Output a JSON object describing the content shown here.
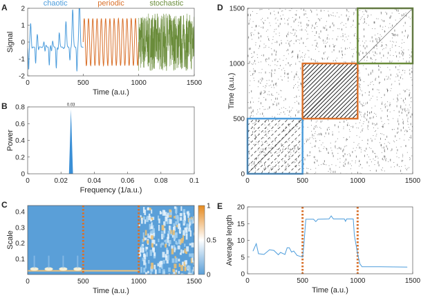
{
  "colors": {
    "chaotic": "#4b9cdc",
    "periodic": "#d9702a",
    "stochastic": "#6a8c3a",
    "heat_low": "#5a9fd8",
    "heat_mid": "#ffffff",
    "heat_high": "#e58a1f"
  },
  "chart_data": [
    {
      "panel": "A",
      "type": "line",
      "xlabel": "Time (a.u.)",
      "ylabel": "Signal",
      "xlim": [
        0,
        1500
      ],
      "ylim": [
        -2,
        2
      ],
      "xticks": [
        "0",
        "500",
        "1000",
        "1500"
      ],
      "yticks": [
        "-2",
        "-1",
        "0",
        "1",
        "2"
      ],
      "segments": [
        {
          "label": "chaotic",
          "range": [
            0,
            500
          ],
          "color_key": "chaotic"
        },
        {
          "label": "periodic",
          "range": [
            500,
            1000
          ],
          "amplitude": 1.4,
          "frequency": 0.026,
          "color_key": "periodic"
        },
        {
          "label": "stochastic",
          "range": [
            1000,
            1500
          ],
          "amplitude": 1.7,
          "color_key": "stochastic"
        }
      ]
    },
    {
      "panel": "B",
      "type": "area",
      "xlabel": "Frequency (1/a.u.)",
      "ylabel": "Power",
      "xlim": [
        0,
        0.1
      ],
      "ylim": [
        0,
        0.8
      ],
      "xticks": [
        "0",
        "0.02",
        "0.04",
        "0.06",
        "0.08",
        "0.1"
      ],
      "yticks": [
        "0",
        "0.2",
        "0.4",
        "0.6",
        "0.8"
      ],
      "peak": {
        "x": 0.026,
        "y": 0.77,
        "annotation": "0.03"
      }
    },
    {
      "panel": "C",
      "type": "heatmap",
      "xlabel": "Time (a.u.)",
      "ylabel": "Scale",
      "xlim": [
        0,
        1500
      ],
      "ylim": [
        0,
        0.44
      ],
      "xticks": [
        "0",
        "500",
        "1000",
        "1500"
      ],
      "yticks": [
        "0.1",
        "0.2",
        "0.3",
        "0.4"
      ],
      "colorbar_ticks": [
        "0",
        "0.5",
        "1"
      ],
      "markers": [
        500,
        1000
      ]
    },
    {
      "panel": "D",
      "type": "scatter",
      "xlabel": "",
      "ylabel": "Time (a.u.)",
      "xlim": [
        0,
        1500
      ],
      "ylim": [
        0,
        1500
      ],
      "xticks": [
        "0",
        "500",
        "1000",
        "1500"
      ],
      "yticks": [
        "0",
        "500",
        "1000",
        "1500"
      ],
      "boxes": [
        {
          "range": [
            0,
            500
          ],
          "color_key": "chaotic"
        },
        {
          "range": [
            500,
            1000
          ],
          "color_key": "periodic"
        },
        {
          "range": [
            1000,
            1500
          ],
          "color_key": "stochastic"
        }
      ]
    },
    {
      "panel": "E",
      "type": "line",
      "xlabel": "Time (a.u.)",
      "ylabel": "Average length",
      "xlim": [
        0,
        1500
      ],
      "ylim": [
        0,
        20
      ],
      "xticks": [
        "0",
        "500",
        "1000",
        "1500"
      ],
      "yticks": [
        "0",
        "5",
        "10",
        "15",
        "20"
      ],
      "markers": [
        500,
        1000
      ],
      "x": [
        50,
        80,
        100,
        150,
        200,
        240,
        280,
        300,
        340,
        360,
        380,
        400,
        420,
        450,
        480,
        500,
        510,
        530,
        600,
        620,
        640,
        740,
        760,
        780,
        880,
        890,
        900,
        960,
        970,
        1000,
        1020,
        1040,
        1200,
        1450
      ],
      "y": [
        6.8,
        9.0,
        6.0,
        5.8,
        7.2,
        7.0,
        5.7,
        6.4,
        5.8,
        7.8,
        7.8,
        6.5,
        6.8,
        5.5,
        5.2,
        5.0,
        8.0,
        16.3,
        16.3,
        15.6,
        16.3,
        16.4,
        17.3,
        16.4,
        16.4,
        15.7,
        16.4,
        16.4,
        11.5,
        6.0,
        3.0,
        2.1,
        2.1,
        2.0
      ]
    }
  ]
}
